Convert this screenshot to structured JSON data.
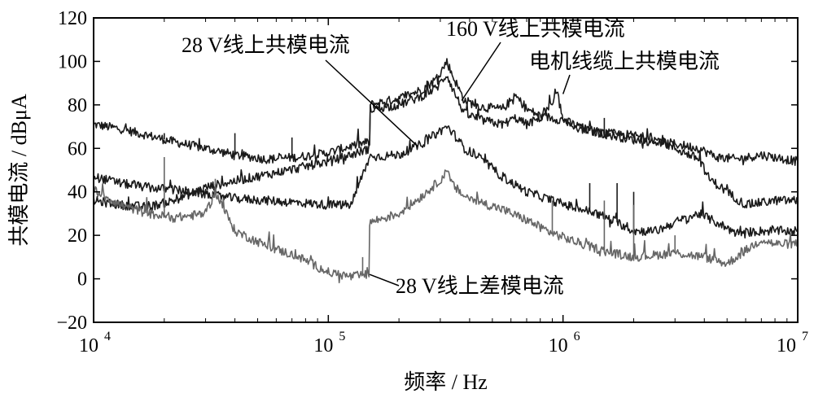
{
  "chart_data": {
    "type": "line",
    "xscale": "log",
    "xlim": [
      10000,
      10000000
    ],
    "ylim": [
      -20,
      120
    ],
    "xlabel": "频率 / Hz",
    "ylabel": "共模电流 / dBμA",
    "grid": false,
    "y_ticks": [
      "120",
      "100",
      "80",
      "60",
      "40",
      "20",
      "0",
      "−20"
    ],
    "x_ticks": [
      {
        "base": "10",
        "exp": "4"
      },
      {
        "base": "10",
        "exp": "5"
      },
      {
        "base": "10",
        "exp": "6"
      },
      {
        "base": "10",
        "exp": "7"
      }
    ],
    "series": [
      {
        "name": "160 V线上共模电流",
        "color": "#1a1a1a",
        "x": [
          10000,
          13000,
          17000,
          22000,
          30000,
          40000,
          55000,
          75000,
          100000,
          125000,
          150000,
          151000,
          200000,
          250000,
          290000,
          320000,
          340000,
          380000,
          450000,
          550000,
          630000,
          700000,
          800000,
          1000000,
          1300000,
          1600000,
          2000000,
          2500000,
          3000000,
          3800000,
          4500000,
          5500000,
          7000000,
          10000000
        ],
        "y": [
          71,
          69,
          66,
          63,
          60,
          57,
          55,
          56,
          58,
          61,
          63,
          80,
          83,
          87,
          92,
          100,
          93,
          82,
          79,
          78,
          84,
          78,
          75,
          73,
          68,
          66,
          64,
          63,
          62,
          60,
          56,
          55,
          57,
          54
        ],
        "spikes": [
          [
            20000,
            67
          ],
          [
            40000,
            67
          ],
          [
            70000,
            65
          ],
          [
            1500000,
            74
          ]
        ]
      },
      {
        "name": "电机线缆上共模电流",
        "color": "#1a1a1a",
        "x": [
          10000,
          13000,
          17000,
          22000,
          30000,
          40000,
          55000,
          75000,
          100000,
          125000,
          150000,
          151000,
          200000,
          250000,
          290000,
          320000,
          340000,
          380000,
          450000,
          550000,
          630000,
          700000,
          800000,
          900000,
          950000,
          1000000,
          1200000,
          1500000,
          2000000,
          2500000,
          3000000,
          3800000,
          4200000,
          5000000,
          6000000,
          8000000,
          10000000
        ],
        "y": [
          36,
          34,
          33,
          36,
          42,
          45,
          48,
          51,
          54,
          57,
          60,
          78,
          80,
          84,
          88,
          94,
          87,
          76,
          73,
          71,
          74,
          71,
          74,
          80,
          85,
          72,
          69,
          67,
          66,
          64,
          60,
          55,
          46,
          40,
          34,
          36,
          36
        ]
      },
      {
        "name": "28 V线上共模电流",
        "color": "#1a1a1a",
        "x": [
          10000,
          13000,
          17000,
          22000,
          30000,
          40000,
          55000,
          75000,
          100000,
          125000,
          150000,
          200000,
          250000,
          290000,
          320000,
          340000,
          380000,
          450000,
          550000,
          700000,
          900000,
          1100000,
          1400000,
          1700000,
          2000000,
          2500000,
          3000000,
          3800000,
          4500000,
          5500000,
          7000000,
          10000000
        ],
        "y": [
          47,
          44,
          42,
          41,
          39,
          37,
          36,
          35,
          34,
          34,
          56,
          57,
          62,
          67,
          70,
          67,
          60,
          55,
          47,
          40,
          36,
          33,
          30,
          26,
          22,
          22,
          26,
          30,
          26,
          21,
          22,
          22
        ],
        "spikes": [
          [
            1300000,
            44
          ],
          [
            1700000,
            44
          ],
          [
            2000000,
            40
          ]
        ]
      },
      {
        "name": "28 V线上差模电流",
        "color": "#666666",
        "x": [
          10000,
          13000,
          17000,
          22000,
          30000,
          33000,
          40000,
          55000,
          75000,
          100000,
          125000,
          149000,
          150000,
          200000,
          250000,
          290000,
          320000,
          340000,
          380000,
          450000,
          550000,
          700000,
          900000,
          1200000,
          1600000,
          2000000,
          2500000,
          3000000,
          4000000,
          5000000,
          6000000,
          7000000,
          8000000,
          10000000
        ],
        "y": [
          41,
          34,
          30,
          28,
          30,
          40,
          22,
          15,
          10,
          3,
          1,
          2,
          26,
          30,
          38,
          44,
          49,
          43,
          38,
          35,
          32,
          27,
          21,
          16,
          12,
          10,
          11,
          12,
          10,
          7,
          13,
          18,
          16,
          16
        ],
        "spikes": [
          [
            20000,
            56
          ],
          [
            33000,
            46
          ],
          [
            140000,
            10
          ],
          [
            150000,
            26
          ],
          [
            900000,
            36
          ],
          [
            1500000,
            36
          ],
          [
            2000000,
            34
          ],
          [
            3000000,
            20
          ]
        ]
      }
    ],
    "annotations": [
      {
        "text": "160 V线上共模电流",
        "target_x": 370000,
        "target_y": 82
      },
      {
        "text": "28 V线上共模电流",
        "target_x": 240000,
        "target_y": 61
      },
      {
        "text": "电机线缆上共模电流",
        "target_x": 1000000,
        "target_y": 85
      },
      {
        "text": "28 V线上差模电流",
        "target_x": 150000,
        "target_y": 2
      }
    ]
  }
}
